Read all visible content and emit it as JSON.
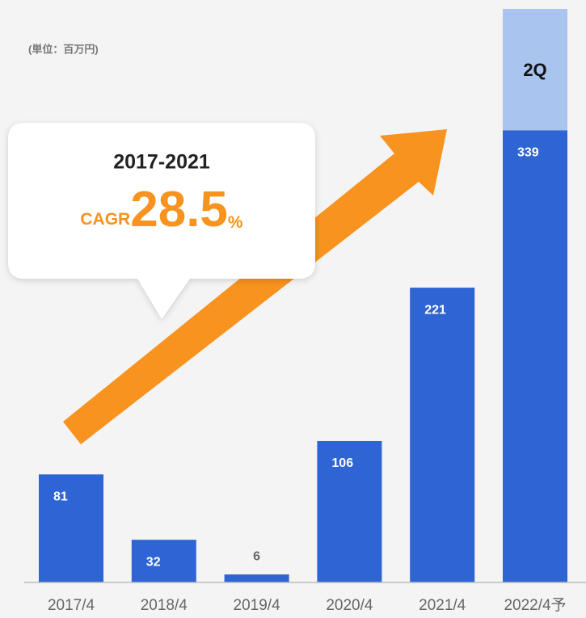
{
  "chart_data": {
    "type": "bar",
    "unit_note": "(単位：百万円)",
    "categories": [
      "2017/4",
      "2018/4",
      "2019/4",
      "2020/4",
      "2021/4",
      "2022/4予"
    ],
    "values": [
      81,
      32,
      6,
      106,
      221,
      339
    ],
    "color": "#2e64d4",
    "stack": {
      "label": "2Q",
      "values": [
        null,
        null,
        null,
        null,
        null,
        91
      ],
      "color": "#a9c4ef"
    },
    "ylim": [
      0,
      430
    ],
    "callout": {
      "period": "2017-2021",
      "label": "CAGR",
      "value": 28.5,
      "unit": "%"
    }
  }
}
